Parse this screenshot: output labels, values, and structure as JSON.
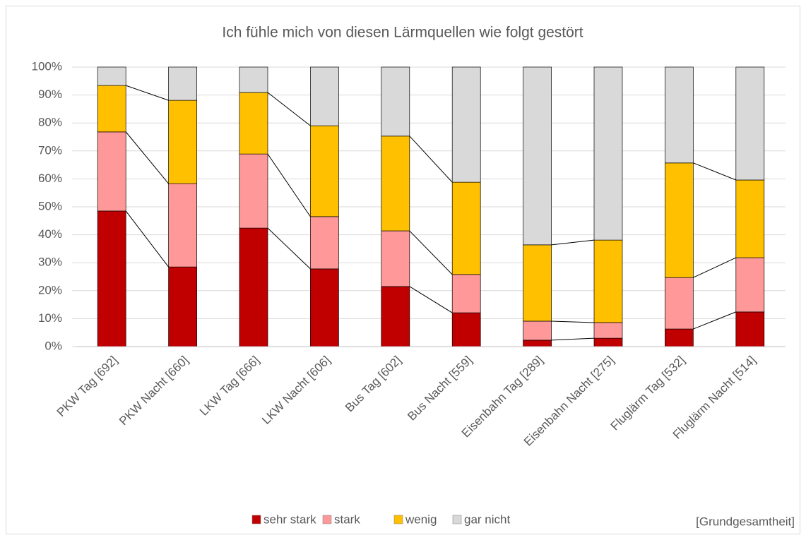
{
  "chart_data": {
    "type": "stacked_bar_100",
    "title": "Ich fühle mich von diesen Lärmquellen wie folgt gestört",
    "note": "[Grundgesamtheit]",
    "categories": [
      "PKW Tag [692]",
      "PKW Nacht [660]",
      "LKW Tag [666]",
      "LKW Nacht [606]",
      "Bus Tag [602]",
      "Bus Nacht [559]",
      "Eisenbahn Tag [289]",
      "Eisenbahn Nacht [275]",
      "Fluglärm Tag [532]",
      "Fluglärm Nacht [514]"
    ],
    "series": [
      {
        "name": "sehr stark",
        "color": "#c00000",
        "values": [
          48.5,
          28.5,
          42.4,
          27.8,
          21.5,
          12.1,
          2.3,
          3.0,
          6.3,
          12.4
        ]
      },
      {
        "name": "stark",
        "color": "#ff9999",
        "values": [
          28.3,
          29.8,
          26.5,
          18.7,
          19.9,
          13.7,
          6.8,
          5.6,
          18.4,
          19.4
        ]
      },
      {
        "name": "wenig",
        "color": "#ffc000",
        "values": [
          16.6,
          29.8,
          22.0,
          32.5,
          33.9,
          33.0,
          27.3,
          29.5,
          41.0,
          27.8
        ]
      },
      {
        "name": "gar nicht",
        "color": "#d9d9d9",
        "values": [
          6.6,
          11.9,
          9.1,
          21.0,
          24.7,
          41.2,
          63.6,
          61.9,
          34.3,
          40.4
        ]
      }
    ],
    "ylim": [
      0,
      100
    ],
    "yticks": [
      {
        "value": 0,
        "label": "0%"
      },
      {
        "value": 10,
        "label": "10%"
      },
      {
        "value": 20,
        "label": "20%"
      },
      {
        "value": 30,
        "label": "30%"
      },
      {
        "value": 40,
        "label": "40%"
      },
      {
        "value": 50,
        "label": "50%"
      },
      {
        "value": 60,
        "label": "60%"
      },
      {
        "value": 70,
        "label": "70%"
      },
      {
        "value": 80,
        "label": "80%"
      },
      {
        "value": 90,
        "label": "90%"
      },
      {
        "value": 100,
        "label": "100%"
      }
    ],
    "grid": true,
    "legend": "bottom"
  }
}
